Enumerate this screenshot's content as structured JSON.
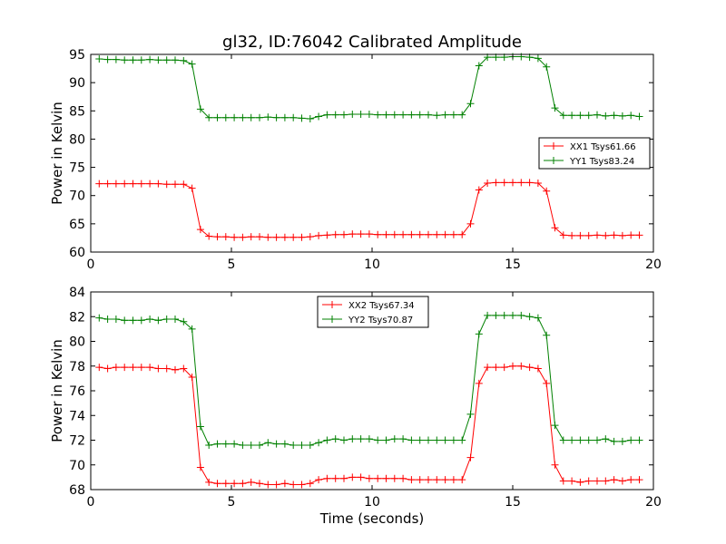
{
  "title": "gl32, ID:76042 Calibrated Amplitude",
  "colors": {
    "red": "#ff0000",
    "green": "#008000"
  },
  "chart_data": [
    {
      "type": "line",
      "title": "gl32, ID:76042 Calibrated Amplitude",
      "xlabel": "",
      "ylabel": "Power in Kelvin",
      "xlim": [
        0,
        20
      ],
      "ylim": [
        60,
        95
      ],
      "xticks": [
        0,
        5,
        10,
        15,
        20
      ],
      "yticks": [
        60,
        65,
        70,
        75,
        80,
        85,
        90,
        95
      ],
      "grid": false,
      "legend_position": "center-right",
      "series": [
        {
          "name": "XX1 Tsys61.66",
          "color": "#ff0000",
          "marker": "+",
          "x": [
            0.3,
            0.6,
            0.9,
            1.2,
            1.5,
            1.8,
            2.1,
            2.4,
            2.7,
            3.0,
            3.3,
            3.6,
            3.9,
            4.2,
            4.5,
            4.8,
            5.1,
            5.4,
            5.7,
            6.0,
            6.3,
            6.6,
            6.9,
            7.2,
            7.5,
            7.8,
            8.1,
            8.4,
            8.7,
            9.0,
            9.3,
            9.6,
            9.9,
            10.2,
            10.5,
            10.8,
            11.1,
            11.4,
            11.7,
            12.0,
            12.3,
            12.6,
            12.9,
            13.2,
            13.5,
            13.8,
            14.1,
            14.4,
            14.7,
            15.0,
            15.3,
            15.6,
            15.9,
            16.2,
            16.5,
            16.8,
            17.1,
            17.4,
            17.7,
            18.0,
            18.3,
            18.6,
            18.9,
            19.2,
            19.5
          ],
          "y": [
            72.1,
            72.1,
            72.1,
            72.1,
            72.1,
            72.1,
            72.1,
            72.1,
            72.0,
            72.0,
            72.0,
            71.3,
            64.0,
            62.8,
            62.7,
            62.7,
            62.6,
            62.6,
            62.7,
            62.7,
            62.6,
            62.6,
            62.6,
            62.6,
            62.6,
            62.7,
            62.9,
            63.0,
            63.1,
            63.1,
            63.2,
            63.2,
            63.2,
            63.1,
            63.1,
            63.1,
            63.1,
            63.1,
            63.1,
            63.1,
            63.1,
            63.1,
            63.1,
            63.1,
            65.0,
            71.0,
            72.2,
            72.3,
            72.3,
            72.3,
            72.3,
            72.3,
            72.2,
            70.8,
            64.3,
            63.0,
            62.9,
            62.9,
            62.9,
            63.0,
            62.9,
            63.0,
            62.9,
            63.0,
            63.0
          ]
        },
        {
          "name": "YY1 Tsys83.24",
          "color": "#008000",
          "marker": "+",
          "x": [
            0.3,
            0.6,
            0.9,
            1.2,
            1.5,
            1.8,
            2.1,
            2.4,
            2.7,
            3.0,
            3.3,
            3.6,
            3.9,
            4.2,
            4.5,
            4.8,
            5.1,
            5.4,
            5.7,
            6.0,
            6.3,
            6.6,
            6.9,
            7.2,
            7.5,
            7.8,
            8.1,
            8.4,
            8.7,
            9.0,
            9.3,
            9.6,
            9.9,
            10.2,
            10.5,
            10.8,
            11.1,
            11.4,
            11.7,
            12.0,
            12.3,
            12.6,
            12.9,
            13.2,
            13.5,
            13.8,
            14.1,
            14.4,
            14.7,
            15.0,
            15.3,
            15.6,
            15.9,
            16.2,
            16.5,
            16.8,
            17.1,
            17.4,
            17.7,
            18.0,
            18.3,
            18.6,
            18.9,
            19.2,
            19.5
          ],
          "y": [
            94.2,
            94.1,
            94.1,
            94.0,
            94.0,
            94.0,
            94.1,
            94.0,
            94.0,
            94.0,
            93.9,
            93.3,
            85.3,
            83.8,
            83.8,
            83.8,
            83.8,
            83.8,
            83.8,
            83.8,
            83.9,
            83.8,
            83.8,
            83.8,
            83.7,
            83.6,
            84.0,
            84.3,
            84.3,
            84.3,
            84.4,
            84.4,
            84.4,
            84.3,
            84.3,
            84.3,
            84.3,
            84.3,
            84.3,
            84.3,
            84.2,
            84.3,
            84.3,
            84.3,
            86.3,
            93.0,
            94.5,
            94.5,
            94.5,
            94.6,
            94.6,
            94.5,
            94.3,
            92.8,
            85.5,
            84.2,
            84.2,
            84.2,
            84.2,
            84.3,
            84.1,
            84.2,
            84.1,
            84.2,
            84.0
          ]
        }
      ]
    },
    {
      "type": "line",
      "title": "",
      "xlabel": "Time (seconds)",
      "ylabel": "Power in Kelvin",
      "xlim": [
        0,
        20
      ],
      "ylim": [
        68,
        84
      ],
      "xticks": [
        0,
        5,
        10,
        15,
        20
      ],
      "yticks": [
        68,
        70,
        72,
        74,
        76,
        78,
        80,
        82,
        84
      ],
      "grid": false,
      "legend_position": "top-center",
      "series": [
        {
          "name": "XX2 Tsys67.34",
          "color": "#ff0000",
          "marker": "+",
          "x": [
            0.3,
            0.6,
            0.9,
            1.2,
            1.5,
            1.8,
            2.1,
            2.4,
            2.7,
            3.0,
            3.3,
            3.6,
            3.9,
            4.2,
            4.5,
            4.8,
            5.1,
            5.4,
            5.7,
            6.0,
            6.3,
            6.6,
            6.9,
            7.2,
            7.5,
            7.8,
            8.1,
            8.4,
            8.7,
            9.0,
            9.3,
            9.6,
            9.9,
            10.2,
            10.5,
            10.8,
            11.1,
            11.4,
            11.7,
            12.0,
            12.3,
            12.6,
            12.9,
            13.2,
            13.5,
            13.8,
            14.1,
            14.4,
            14.7,
            15.0,
            15.3,
            15.6,
            15.9,
            16.2,
            16.5,
            16.8,
            17.1,
            17.4,
            17.7,
            18.0,
            18.3,
            18.6,
            18.9,
            19.2,
            19.5
          ],
          "y": [
            77.9,
            77.8,
            77.9,
            77.9,
            77.9,
            77.9,
            77.9,
            77.8,
            77.8,
            77.7,
            77.8,
            77.1,
            69.8,
            68.6,
            68.5,
            68.5,
            68.5,
            68.5,
            68.6,
            68.5,
            68.4,
            68.4,
            68.5,
            68.4,
            68.4,
            68.5,
            68.8,
            68.9,
            68.9,
            68.9,
            69.0,
            69.0,
            68.9,
            68.9,
            68.9,
            68.9,
            68.9,
            68.8,
            68.8,
            68.8,
            68.8,
            68.8,
            68.8,
            68.8,
            70.6,
            76.6,
            77.9,
            77.9,
            77.9,
            78.0,
            78.0,
            77.9,
            77.8,
            76.6,
            70.0,
            68.7,
            68.7,
            68.6,
            68.7,
            68.7,
            68.7,
            68.8,
            68.7,
            68.8,
            68.8
          ]
        },
        {
          "name": "YY2 Tsys70.87",
          "color": "#008000",
          "marker": "+",
          "x": [
            0.3,
            0.6,
            0.9,
            1.2,
            1.5,
            1.8,
            2.1,
            2.4,
            2.7,
            3.0,
            3.3,
            3.6,
            3.9,
            4.2,
            4.5,
            4.8,
            5.1,
            5.4,
            5.7,
            6.0,
            6.3,
            6.6,
            6.9,
            7.2,
            7.5,
            7.8,
            8.1,
            8.4,
            8.7,
            9.0,
            9.3,
            9.6,
            9.9,
            10.2,
            10.5,
            10.8,
            11.1,
            11.4,
            11.7,
            12.0,
            12.3,
            12.6,
            12.9,
            13.2,
            13.5,
            13.8,
            14.1,
            14.4,
            14.7,
            15.0,
            15.3,
            15.6,
            15.9,
            16.2,
            16.5,
            16.8,
            17.1,
            17.4,
            17.7,
            18.0,
            18.3,
            18.6,
            18.9,
            19.2,
            19.5
          ],
          "y": [
            81.9,
            81.8,
            81.8,
            81.7,
            81.7,
            81.7,
            81.8,
            81.7,
            81.8,
            81.8,
            81.6,
            81.0,
            73.1,
            71.6,
            71.7,
            71.7,
            71.7,
            71.6,
            71.6,
            71.6,
            71.8,
            71.7,
            71.7,
            71.6,
            71.6,
            71.6,
            71.8,
            72.0,
            72.1,
            72.0,
            72.1,
            72.1,
            72.1,
            72.0,
            72.0,
            72.1,
            72.1,
            72.0,
            72.0,
            72.0,
            72.0,
            72.0,
            72.0,
            72.0,
            74.1,
            80.6,
            82.1,
            82.1,
            82.1,
            82.1,
            82.1,
            82.0,
            81.9,
            80.5,
            73.2,
            72.0,
            72.0,
            72.0,
            72.0,
            72.0,
            72.1,
            71.9,
            71.9,
            72.0,
            72.0
          ]
        }
      ]
    }
  ]
}
